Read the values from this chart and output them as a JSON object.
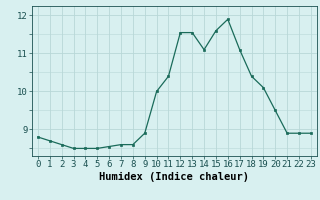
{
  "x": [
    0,
    1,
    2,
    3,
    4,
    5,
    6,
    7,
    8,
    9,
    10,
    11,
    12,
    13,
    14,
    15,
    16,
    17,
    18,
    19,
    20,
    21,
    22,
    23
  ],
  "y": [
    8.8,
    8.7,
    8.6,
    8.5,
    8.5,
    8.5,
    8.55,
    8.6,
    8.6,
    8.9,
    10.0,
    10.4,
    11.55,
    11.55,
    11.1,
    11.6,
    11.9,
    11.1,
    10.4,
    10.1,
    9.5,
    8.9,
    8.9,
    8.9
  ],
  "xlabel": "Humidex (Indice chaleur)",
  "bg_color": "#d8f0f0",
  "grid_color": "#b8d8d8",
  "line_color": "#1a6b5a",
  "marker_color": "#1a6b5a",
  "ylim_bottom": 8.3,
  "ylim_top": 12.25,
  "yticks": [
    9,
    10,
    11,
    12
  ],
  "xticks": [
    0,
    1,
    2,
    3,
    4,
    5,
    6,
    7,
    8,
    9,
    10,
    11,
    12,
    13,
    14,
    15,
    16,
    17,
    18,
    19,
    20,
    21,
    22,
    23
  ],
  "tick_fontsize": 6.5,
  "xlabel_fontsize": 7.5,
  "fig_width": 3.2,
  "fig_height": 2.0,
  "dpi": 100
}
